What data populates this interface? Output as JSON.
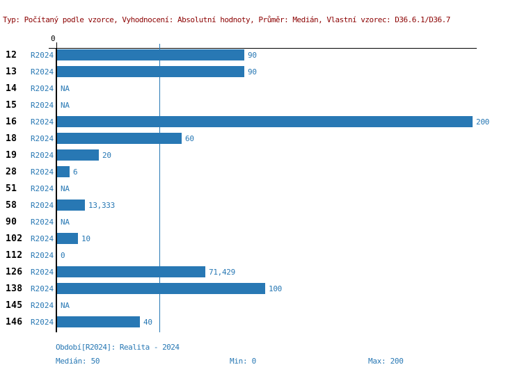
{
  "header": {
    "title": "Typ: Počítaný podle vzorce, Vyhodnocení: Absolutní hodnoty, Průměr: Medián, Vlastní vzorec: D36.6.1/D36.7"
  },
  "colors": {
    "bar": "#2878b4",
    "blue_text": "#2878b4",
    "header_text": "#8b0000",
    "axis": "#000000",
    "median_line": "#2878b4"
  },
  "chart_data": {
    "type": "bar",
    "orientation": "horizontal",
    "title": "",
    "xlabel": "",
    "ylabel": "",
    "xlim": [
      0,
      200
    ],
    "axis": {
      "origin_label": "0",
      "median_value": 50,
      "min_value": 0,
      "max_value": 200
    },
    "series_label": "R2024",
    "grid": "median-line-only",
    "categories": [
      "12",
      "13",
      "14",
      "15",
      "16",
      "18",
      "19",
      "28",
      "51",
      "58",
      "90",
      "102",
      "112",
      "126",
      "138",
      "145",
      "146"
    ],
    "rows": [
      {
        "group": "12",
        "period": "R2024",
        "value": 90,
        "label": "90"
      },
      {
        "group": "13",
        "period": "R2024",
        "value": 90,
        "label": "90"
      },
      {
        "group": "14",
        "period": "R2024",
        "value": null,
        "label": "NA"
      },
      {
        "group": "15",
        "period": "R2024",
        "value": null,
        "label": "NA"
      },
      {
        "group": "16",
        "period": "R2024",
        "value": 200,
        "label": "200"
      },
      {
        "group": "18",
        "period": "R2024",
        "value": 60,
        "label": "60"
      },
      {
        "group": "19",
        "period": "R2024",
        "value": 20,
        "label": "20"
      },
      {
        "group": "28",
        "period": "R2024",
        "value": 6,
        "label": "6"
      },
      {
        "group": "51",
        "period": "R2024",
        "value": null,
        "label": "NA"
      },
      {
        "group": "58",
        "period": "R2024",
        "value": 13.333,
        "label": "13,333"
      },
      {
        "group": "90",
        "period": "R2024",
        "value": null,
        "label": "NA"
      },
      {
        "group": "102",
        "period": "R2024",
        "value": 10,
        "label": "10"
      },
      {
        "group": "112",
        "period": "R2024",
        "value": 0,
        "label": "0"
      },
      {
        "group": "126",
        "period": "R2024",
        "value": 71.429,
        "label": "71,429"
      },
      {
        "group": "138",
        "period": "R2024",
        "value": 100,
        "label": "100"
      },
      {
        "group": "145",
        "period": "R2024",
        "value": null,
        "label": "NA"
      },
      {
        "group": "146",
        "period": "R2024",
        "value": 40,
        "label": "40"
      }
    ]
  },
  "footer": {
    "period_line": "Období[R2024]: Realita - 2024",
    "median": "Medián: 50",
    "min": "Min: 0",
    "max": "Max: 200"
  }
}
